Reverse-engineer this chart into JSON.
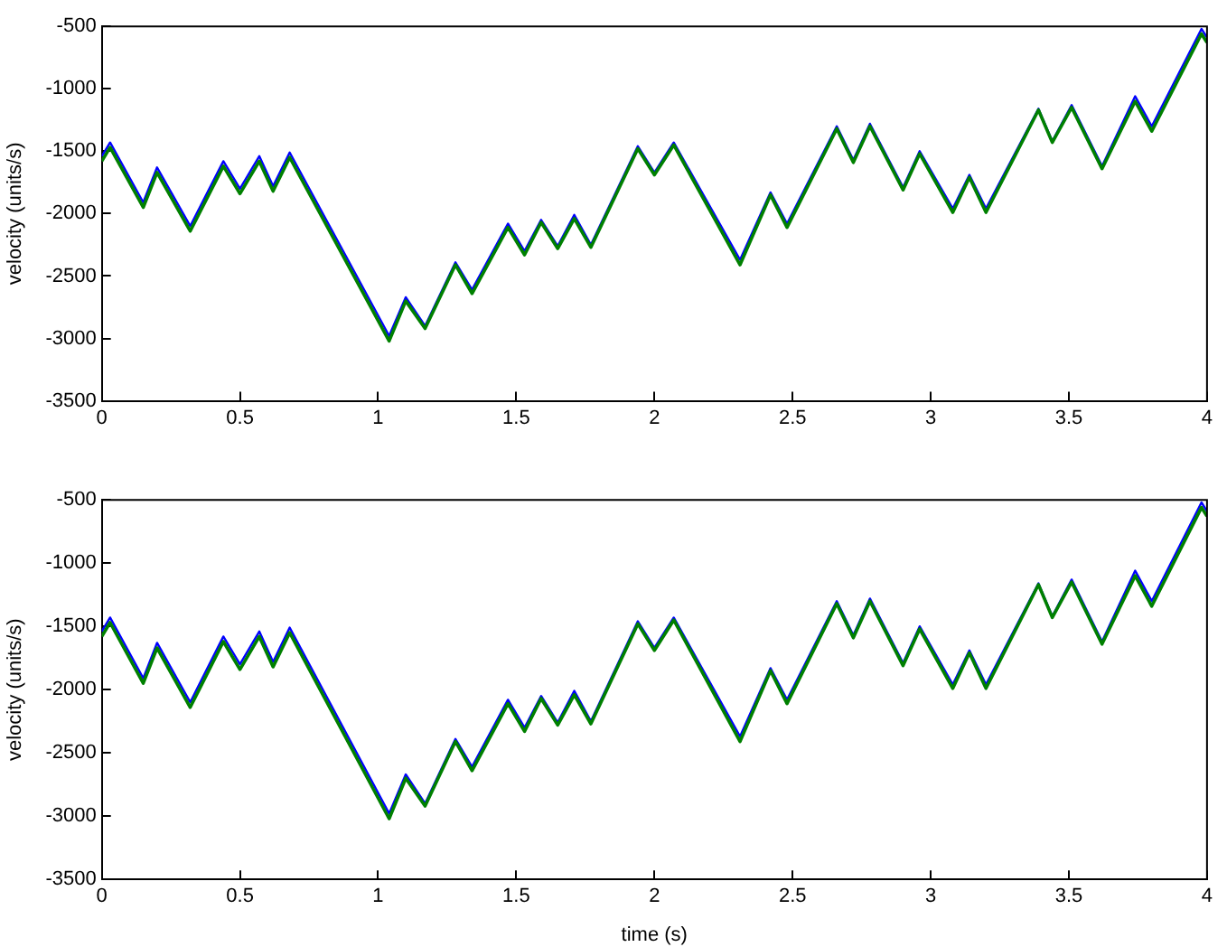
{
  "chart_data": [
    {
      "type": "line",
      "ylabel": "velocity (units/s)",
      "xlim": [
        0,
        4
      ],
      "xticks": [
        0,
        0.5,
        1,
        1.5,
        2,
        2.5,
        3,
        3.5,
        4
      ],
      "ylim": [
        -3500,
        -500
      ],
      "yticks": [
        -3500,
        -3000,
        -2500,
        -2000,
        -1500,
        -1000,
        -500
      ],
      "grid": false,
      "legend": false,
      "marker": "none",
      "line_style": "solid",
      "x": [
        0,
        0.03,
        0.15,
        0.2,
        0.32,
        0.44,
        0.5,
        0.57,
        0.62,
        0.68,
        1.04,
        1.1,
        1.17,
        1.28,
        1.34,
        1.47,
        1.53,
        1.59,
        1.65,
        1.71,
        1.77,
        1.94,
        2.0,
        2.07,
        2.31,
        2.42,
        2.48,
        2.66,
        2.72,
        2.78,
        2.9,
        2.96,
        3.08,
        3.14,
        3.2,
        3.39,
        3.44,
        3.51,
        3.62,
        3.74,
        3.8,
        3.98,
        4.0
      ],
      "series": [
        {
          "color": "#0000ff",
          "values": [
            -1540,
            -1430,
            -1910,
            -1630,
            -2100,
            -1580,
            -1800,
            -1540,
            -1780,
            -1510,
            -2980,
            -2670,
            -2900,
            -2390,
            -2610,
            -2080,
            -2300,
            -2050,
            -2260,
            -2010,
            -2250,
            -1460,
            -1670,
            -1430,
            -2370,
            -1830,
            -2080,
            -1300,
            -1570,
            -1280,
            -1790,
            -1500,
            -1960,
            -1690,
            -1960,
            -1160,
            -1420,
            -1130,
            -1620,
            -1060,
            -1300,
            -520,
            -590
          ]
        },
        {
          "color": "#008000",
          "values": [
            -1580,
            -1470,
            -1950,
            -1670,
            -2140,
            -1620,
            -1840,
            -1580,
            -1820,
            -1550,
            -3020,
            -2700,
            -2920,
            -2410,
            -2640,
            -2110,
            -2330,
            -2070,
            -2280,
            -2040,
            -2270,
            -1480,
            -1690,
            -1450,
            -2410,
            -1850,
            -2110,
            -1320,
            -1590,
            -1300,
            -1810,
            -1520,
            -1990,
            -1710,
            -1990,
            -1170,
            -1430,
            -1150,
            -1640,
            -1100,
            -1340,
            -560,
            -630
          ]
        }
      ]
    },
    {
      "type": "line",
      "xlabel": "time (s)",
      "ylabel": "velocity (units/s)",
      "xlim": [
        0,
        4
      ],
      "xticks": [
        0,
        0.5,
        1,
        1.5,
        2,
        2.5,
        3,
        3.5,
        4
      ],
      "ylim": [
        -3500,
        -500
      ],
      "yticks": [
        -3500,
        -3000,
        -2500,
        -2000,
        -1500,
        -1000,
        -500
      ],
      "grid": false,
      "legend": false,
      "marker": "none",
      "line_style": "solid",
      "x": [
        0,
        0.03,
        0.15,
        0.2,
        0.32,
        0.44,
        0.5,
        0.57,
        0.62,
        0.68,
        1.04,
        1.1,
        1.17,
        1.28,
        1.34,
        1.47,
        1.53,
        1.59,
        1.65,
        1.71,
        1.77,
        1.94,
        2.0,
        2.07,
        2.31,
        2.42,
        2.48,
        2.66,
        2.72,
        2.78,
        2.9,
        2.96,
        3.08,
        3.14,
        3.2,
        3.39,
        3.44,
        3.51,
        3.62,
        3.74,
        3.8,
        3.98,
        4.0
      ],
      "series": [
        {
          "color": "#0000ff",
          "values": [
            -1540,
            -1430,
            -1910,
            -1630,
            -2100,
            -1580,
            -1800,
            -1540,
            -1780,
            -1510,
            -2980,
            -2670,
            -2900,
            -2390,
            -2610,
            -2080,
            -2300,
            -2050,
            -2260,
            -2010,
            -2250,
            -1460,
            -1670,
            -1430,
            -2370,
            -1830,
            -2080,
            -1300,
            -1570,
            -1280,
            -1790,
            -1500,
            -1960,
            -1690,
            -1960,
            -1160,
            -1420,
            -1130,
            -1620,
            -1060,
            -1300,
            -520,
            -590
          ]
        },
        {
          "color": "#008000",
          "values": [
            -1580,
            -1470,
            -1950,
            -1670,
            -2140,
            -1620,
            -1840,
            -1580,
            -1820,
            -1550,
            -3020,
            -2700,
            -2920,
            -2410,
            -2640,
            -2110,
            -2330,
            -2070,
            -2280,
            -2040,
            -2270,
            -1480,
            -1690,
            -1450,
            -2410,
            -1850,
            -2110,
            -1320,
            -1590,
            -1300,
            -1810,
            -1520,
            -1990,
            -1710,
            -1990,
            -1170,
            -1430,
            -1150,
            -1640,
            -1100,
            -1340,
            -560,
            -630
          ]
        }
      ]
    }
  ]
}
